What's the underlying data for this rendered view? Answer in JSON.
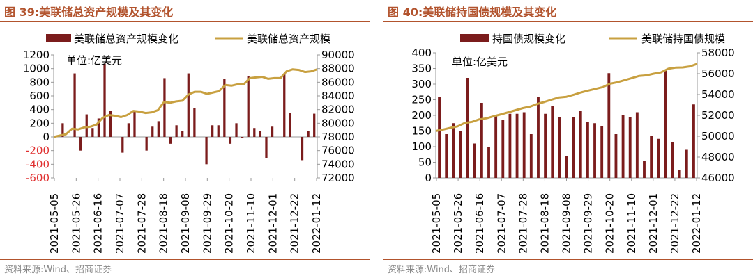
{
  "charts": [
    {
      "figure_title": "图 39:美联储总资产规模及其变化",
      "source": "资料来源:Wind、招商证券",
      "unit_label": "单位:亿美元",
      "colors": {
        "bar": "#7B1C1C",
        "line": "#C8A040",
        "accent": "#B2532D"
      }
    },
    {
      "figure_title": "图 40:美联储持国债规模及其变化",
      "source": "资料来源:Wind、招商证券",
      "unit_label": "单位:亿美元",
      "colors": {
        "bar": "#7B1C1C",
        "line": "#C8A040",
        "accent": "#B2532D"
      }
    }
  ],
  "chart_data": [
    {
      "type": "bar+line",
      "legend_position": "top",
      "x_labels": [
        "2021-05-05",
        "2021-05-26",
        "2021-06-16",
        "2021-07-07",
        "2021-07-28",
        "2021-08-18",
        "2021-09-08",
        "2021-09-29",
        "2021-10-20",
        "2021-11-10",
        "2021-12-01",
        "2021-12-22",
        "2022-01-12"
      ],
      "y_left": {
        "lim": [
          -600,
          1200
        ],
        "ticks": [
          -600,
          -400,
          -200,
          0,
          200,
          400,
          600,
          800,
          1000,
          1200
        ],
        "tick_labels": [
          "-600",
          "-400",
          "-200",
          "0",
          "200",
          "400",
          "600",
          "800",
          "1000",
          "1200"
        ],
        "negative_color": "#E03030"
      },
      "y_right": {
        "lim": [
          72000,
          90000
        ],
        "ticks": [
          72000,
          74000,
          76000,
          78000,
          80000,
          82000,
          84000,
          86000,
          88000,
          90000
        ],
        "tick_labels": [
          "72000",
          "74000",
          "76000",
          "78000",
          "80000",
          "82000",
          "84000",
          "86000",
          "88000",
          "90000"
        ]
      },
      "series": [
        {
          "name": "美联储总资产规模变化",
          "kind": "bar",
          "axis": "left",
          "values": [
            0,
            200,
            0,
            930,
            -200,
            330,
            130,
            270,
            1070,
            380,
            0,
            -230,
            200,
            390,
            0,
            -200,
            150,
            230,
            860,
            -100,
            170,
            90,
            930,
            420,
            0,
            -400,
            170,
            170,
            850,
            -100,
            200,
            -20,
            890,
            130,
            90,
            -310,
            150,
            0,
            930,
            350,
            0,
            -340,
            90,
            340
          ]
        },
        {
          "name": "美联储总资产规模",
          "kind": "line",
          "axis": "right",
          "values": [
            78000,
            78200,
            78400,
            79200,
            79100,
            79400,
            79500,
            79800,
            80800,
            81200,
            81100,
            80900,
            81200,
            81800,
            81700,
            81500,
            81600,
            81900,
            83100,
            83000,
            83200,
            83300,
            84200,
            84600,
            84600,
            84300,
            84500,
            84700,
            85600,
            85500,
            85700,
            85700,
            86600,
            86700,
            86800,
            86500,
            86600,
            86600,
            87600,
            87900,
            87800,
            87500,
            87600,
            87900
          ]
        }
      ]
    },
    {
      "type": "bar+line",
      "legend_position": "top",
      "x_labels": [
        "2021-05-05",
        "2021-05-26",
        "2021-06-16",
        "2021-07-07",
        "2021-07-28",
        "2021-08-18",
        "2021-09-08",
        "2021-09-29",
        "2021-10-20",
        "2021-11-10",
        "2021-12-01",
        "2021-12-22",
        "2022-01-12"
      ],
      "y_left": {
        "lim": [
          0,
          400
        ],
        "ticks": [
          0,
          50,
          100,
          150,
          200,
          250,
          300,
          350,
          400
        ],
        "tick_labels": [
          "0",
          "50",
          "100",
          "150",
          "200",
          "250",
          "300",
          "350",
          "400"
        ]
      },
      "y_right": {
        "lim": [
          46000,
          58000
        ],
        "ticks": [
          46000,
          48000,
          50000,
          52000,
          54000,
          56000,
          58000
        ],
        "tick_labels": [
          "46000",
          "48000",
          "50000",
          "52000",
          "54000",
          "56000",
          "58000"
        ]
      },
      "series": [
        {
          "name": "持国债规模变化",
          "kind": "bar",
          "axis": "left",
          "values": [
            260,
            140,
            175,
            150,
            320,
            110,
            240,
            100,
            200,
            185,
            205,
            205,
            210,
            140,
            260,
            205,
            230,
            195,
            70,
            195,
            215,
            180,
            175,
            165,
            335,
            140,
            200,
            195,
            210,
            55,
            135,
            125,
            345,
            115,
            25,
            90,
            235
          ]
        },
        {
          "name": "美联储持国债规模",
          "kind": "line",
          "axis": "right",
          "values": [
            50500,
            50640,
            50800,
            50950,
            51270,
            51380,
            51620,
            51720,
            51920,
            52100,
            52300,
            52500,
            52700,
            52840,
            53100,
            53300,
            53520,
            53720,
            53790,
            53980,
            54200,
            54380,
            54550,
            54710,
            55040,
            55180,
            55380,
            55580,
            55790,
            55840,
            56000,
            56120,
            56470,
            56580,
            56600,
            56700,
            56950
          ]
        }
      ]
    }
  ]
}
